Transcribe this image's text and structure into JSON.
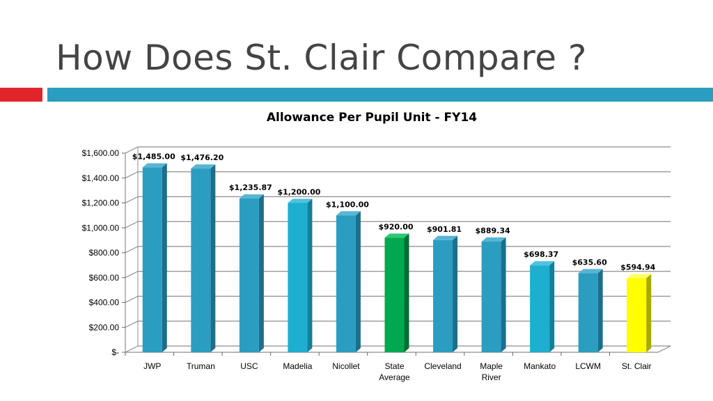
{
  "slide": {
    "title": "How Does St. Clair Compare ?"
  },
  "chart_data": {
    "type": "bar",
    "title": "Allowance Per Pupil Unit - FY14",
    "xlabel": "",
    "ylabel": "",
    "ylim": [
      0,
      1600
    ],
    "yticks": [
      0,
      200,
      400,
      600,
      800,
      1000,
      1200,
      1400,
      1600
    ],
    "ytick_labels": [
      "$-",
      "$200.00",
      "$400.00",
      "$600.00",
      "$800.00",
      "$1,000.00",
      "$1,200.00",
      "$1,400.00",
      "$1,600.00"
    ],
    "grid": true,
    "categories": [
      "JWP",
      "Truman",
      "USC",
      "Madelia",
      "Nicollet",
      "State Average",
      "Cleveland",
      "Maple River",
      "Mankato",
      "LCWM",
      "St. Clair"
    ],
    "category_lines": [
      [
        "JWP"
      ],
      [
        "Truman"
      ],
      [
        "USC"
      ],
      [
        "Madelia"
      ],
      [
        "Nicollet"
      ],
      [
        "State",
        "Average"
      ],
      [
        "Cleveland"
      ],
      [
        "Maple",
        "River"
      ],
      [
        "Mankato"
      ],
      [
        "LCWM"
      ],
      [
        "St. Clair"
      ]
    ],
    "values": [
      1485.0,
      1476.2,
      1235.87,
      1200.0,
      1100.0,
      920.0,
      901.81,
      889.34,
      698.37,
      635.6,
      594.94
    ],
    "data_labels": [
      "$1,485.00",
      "$1,476.20",
      "$1,235.87",
      "$1,200.00",
      "$1,100.00",
      "$920.00",
      "$901.81",
      "$889.34",
      "$698.37",
      "$635.60",
      "$594.94"
    ],
    "colors": [
      "#2b9dc1",
      "#2b9dc1",
      "#2b9dc1",
      "#1eaecf",
      "#2b9dc1",
      "#00a84f",
      "#2b9dc1",
      "#2b9dc1",
      "#1eaecf",
      "#2b9dc1",
      "#ffff00"
    ],
    "side_colors": [
      "#1b6f8c",
      "#1b6f8c",
      "#1b6f8c",
      "#137f98",
      "#1b6f8c",
      "#006e33",
      "#1b6f8c",
      "#1b6f8c",
      "#137f98",
      "#1b6f8c",
      "#a8a800"
    ],
    "top_colors": [
      "#58b5d4",
      "#58b5d4",
      "#58b5d4",
      "#4cc4e0",
      "#58b5d4",
      "#2ec774",
      "#58b5d4",
      "#58b5d4",
      "#4cc4e0",
      "#58b5d4",
      "#ffff66"
    ]
  }
}
